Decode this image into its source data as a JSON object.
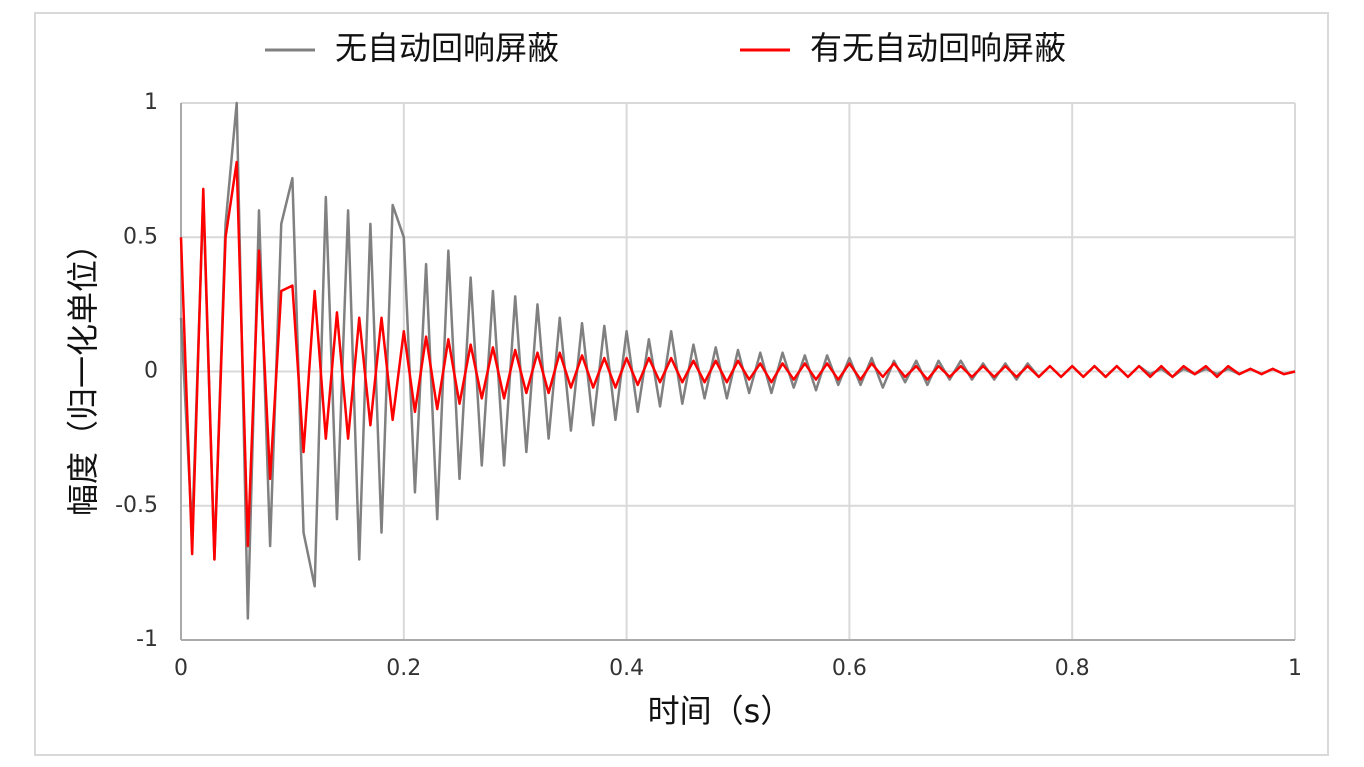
{
  "chart_data": {
    "type": "line",
    "x_label": "时间（s）",
    "y_label": "幅度（归一化单位）",
    "x": [
      0,
      0.01,
      0.02,
      0.03,
      0.04,
      0.05,
      0.06,
      0.07,
      0.08,
      0.09,
      0.1,
      0.11,
      0.12,
      0.13,
      0.14,
      0.15,
      0.16,
      0.17,
      0.18,
      0.19,
      0.2,
      0.21,
      0.22,
      0.23,
      0.24,
      0.25,
      0.26,
      0.27,
      0.28,
      0.29,
      0.3,
      0.31,
      0.32,
      0.33,
      0.34,
      0.35,
      0.36,
      0.37,
      0.38,
      0.39,
      0.4,
      0.41,
      0.42,
      0.43,
      0.44,
      0.45,
      0.46,
      0.47,
      0.48,
      0.49,
      0.5,
      0.51,
      0.52,
      0.53,
      0.54,
      0.55,
      0.56,
      0.57,
      0.58,
      0.59,
      0.6,
      0.61,
      0.62,
      0.63,
      0.64,
      0.65,
      0.66,
      0.67,
      0.68,
      0.69,
      0.7,
      0.71,
      0.72,
      0.73,
      0.74,
      0.75,
      0.76,
      0.77,
      0.78,
      0.79,
      0.8,
      0.81,
      0.82,
      0.83,
      0.84,
      0.85,
      0.86,
      0.87,
      0.88,
      0.89,
      0.9,
      0.91,
      0.92,
      0.93,
      0.94,
      0.95,
      0.96,
      0.97,
      0.98,
      0.99,
      1
    ],
    "series": [
      {
        "name": "无自动回响屏蔽",
        "color": "#808080",
        "values": [
          0.2,
          -0.6,
          0.65,
          -0.7,
          0.55,
          1,
          -0.92,
          0.6,
          -0.65,
          0.55,
          0.72,
          -0.6,
          -0.8,
          0.65,
          -0.55,
          0.6,
          -0.7,
          0.55,
          -0.6,
          0.62,
          0.5,
          -0.45,
          0.4,
          -0.55,
          0.45,
          -0.4,
          0.35,
          -0.35,
          0.3,
          -0.35,
          0.28,
          -0.3,
          0.25,
          -0.25,
          0.2,
          -0.22,
          0.18,
          -0.2,
          0.17,
          -0.18,
          0.15,
          -0.15,
          0.12,
          -0.13,
          0.15,
          -0.12,
          0.1,
          -0.1,
          0.09,
          -0.1,
          0.08,
          -0.08,
          0.07,
          -0.08,
          0.07,
          -0.06,
          0.06,
          -0.07,
          0.06,
          -0.05,
          0.05,
          -0.05,
          0.05,
          -0.06,
          0.04,
          -0.04,
          0.04,
          -0.05,
          0.04,
          -0.03,
          0.04,
          -0.03,
          0.03,
          -0.03,
          0.03,
          -0.03,
          0.03,
          -0.02,
          0.02,
          -0.02,
          0.02,
          -0.02,
          0.02,
          -0.02,
          0.02,
          -0.02,
          0.02,
          -0.01,
          0.01,
          -0.02,
          0.01,
          -0.01,
          0.01,
          -0.01,
          0.01,
          -0.01,
          0.01,
          -0.01,
          0.01,
          -0.01,
          0
        ]
      },
      {
        "name": "有无自动回响屏蔽",
        "color": "#ff0000",
        "values": [
          0.5,
          -0.68,
          0.68,
          -0.7,
          0.5,
          0.78,
          -0.65,
          0.45,
          -0.4,
          0.3,
          0.32,
          -0.3,
          0.3,
          -0.25,
          0.22,
          -0.25,
          0.2,
          -0.2,
          0.2,
          -0.18,
          0.15,
          -0.15,
          0.13,
          -0.14,
          0.12,
          -0.12,
          0.1,
          -0.1,
          0.09,
          -0.1,
          0.08,
          -0.08,
          0.07,
          -0.08,
          0.07,
          -0.06,
          0.06,
          -0.06,
          0.05,
          -0.06,
          0.05,
          -0.05,
          0.05,
          -0.04,
          0.05,
          -0.04,
          0.04,
          -0.04,
          0.04,
          -0.04,
          0.04,
          -0.03,
          0.03,
          -0.04,
          0.03,
          -0.03,
          0.03,
          -0.03,
          0.03,
          -0.03,
          0.03,
          -0.03,
          0.03,
          -0.02,
          0.03,
          -0.02,
          0.02,
          -0.03,
          0.02,
          -0.02,
          0.02,
          -0.02,
          0.02,
          -0.02,
          0.02,
          -0.02,
          0.02,
          -0.02,
          0.02,
          -0.02,
          0.02,
          -0.02,
          0.02,
          -0.02,
          0.02,
          -0.02,
          0.02,
          -0.02,
          0.02,
          -0.02,
          0.02,
          -0.01,
          0.02,
          -0.02,
          0.02,
          -0.01,
          0.01,
          -0.01,
          0.01,
          -0.01,
          0
        ]
      }
    ],
    "xlim": [
      0,
      1
    ],
    "xticks": [
      0,
      0.2,
      0.4,
      0.6,
      0.8,
      1
    ],
    "ylim": [
      -1,
      1
    ],
    "yticks": [
      -1,
      -0.5,
      0,
      0.5,
      1
    ],
    "grid": true,
    "legend": "top"
  }
}
